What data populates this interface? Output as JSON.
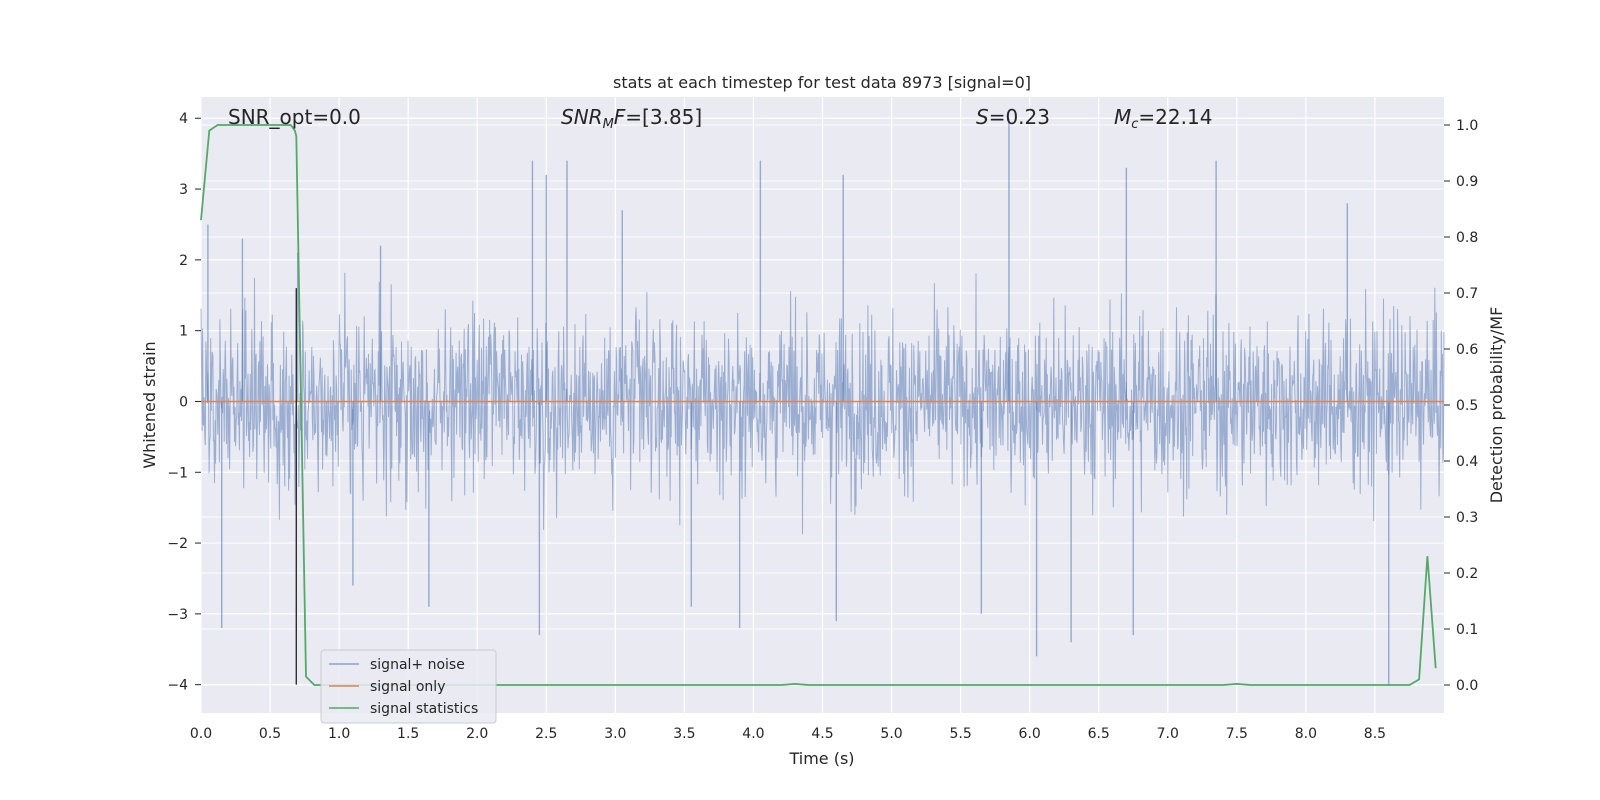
{
  "chart_data": {
    "type": "line",
    "title": "stats at each timestep for test data 8973 [signal=0]",
    "xlabel": "Time (s)",
    "ylabel_left": "Whitened strain",
    "ylabel_right": "Detection probability/MF",
    "xlim": [
      0.0,
      9.0
    ],
    "ylim_left": [
      -4.4,
      4.3
    ],
    "ylim_right": [
      -0.05,
      1.05
    ],
    "xticks": [
      "0.0",
      "0.5",
      "1.0",
      "1.5",
      "2.0",
      "2.5",
      "3.0",
      "3.5",
      "4.0",
      "4.5",
      "5.0",
      "5.5",
      "6.0",
      "6.5",
      "7.0",
      "7.5",
      "8.0",
      "8.5"
    ],
    "xtick_values": [
      0.0,
      0.5,
      1.0,
      1.5,
      2.0,
      2.5,
      3.0,
      3.5,
      4.0,
      4.5,
      5.0,
      5.5,
      6.0,
      6.5,
      7.0,
      7.5,
      8.0,
      8.5
    ],
    "yticks_left": [
      "−4",
      "−3",
      "−2",
      "−1",
      "0",
      "1",
      "2",
      "3",
      "4"
    ],
    "ytick_values_left": [
      -4,
      -3,
      -2,
      -1,
      0,
      1,
      2,
      3,
      4
    ],
    "yticks_right": [
      "0.0",
      "0.1",
      "0.2",
      "0.3",
      "0.4",
      "0.5",
      "0.6",
      "0.7",
      "0.8",
      "0.9",
      "1.0"
    ],
    "ytick_values_right": [
      0.0,
      0.1,
      0.2,
      0.3,
      0.4,
      0.5,
      0.6,
      0.7,
      0.8,
      0.9,
      1.0
    ],
    "annotations": {
      "snr_opt": "SNR_opt=0.0",
      "snr_mf_base": "SNR",
      "snr_mf_sub": "M",
      "snr_mf_rest": "F=[3.85]",
      "s_sym": "S",
      "s_val": "=0.23",
      "mc_sym": "M",
      "mc_sub": "c",
      "mc_val": "=22.14"
    },
    "series": [
      {
        "name": "signal+ noise",
        "color": "#4c72b0",
        "axis": "left",
        "envelope_note": "dense gaussian noise, mostly within ±1.6, spikes to ~±3.5",
        "spikes_up": [
          [
            0.05,
            2.5
          ],
          [
            0.3,
            2.3
          ],
          [
            0.7,
            2.1
          ],
          [
            1.3,
            2.2
          ],
          [
            2.4,
            3.4
          ],
          [
            2.5,
            3.2
          ],
          [
            2.65,
            3.4
          ],
          [
            3.05,
            2.7
          ],
          [
            4.05,
            3.4
          ],
          [
            4.65,
            3.2
          ],
          [
            5.85,
            4.0
          ],
          [
            6.7,
            3.3
          ],
          [
            7.35,
            3.4
          ],
          [
            8.3,
            2.8
          ]
        ],
        "spikes_down": [
          [
            0.15,
            -3.2
          ],
          [
            1.1,
            -2.6
          ],
          [
            1.65,
            -2.9
          ],
          [
            2.45,
            -3.3
          ],
          [
            3.55,
            -2.9
          ],
          [
            3.9,
            -3.2
          ],
          [
            4.6,
            -3.1
          ],
          [
            5.65,
            -3.0
          ],
          [
            6.05,
            -3.6
          ],
          [
            6.3,
            -3.4
          ],
          [
            6.75,
            -3.3
          ],
          [
            8.6,
            -4.0
          ]
        ]
      },
      {
        "name": "signal only",
        "color": "#dd8452",
        "axis": "left",
        "x": [
          0.0,
          9.0
        ],
        "y": [
          0.0,
          0.0
        ]
      },
      {
        "name": "signal statistics",
        "color": "#55a868",
        "axis": "right",
        "x": [
          0.0,
          0.06,
          0.12,
          0.2,
          0.65,
          0.68,
          0.69,
          0.76,
          0.82,
          0.9,
          4.2,
          4.3,
          4.4,
          5.0,
          7.4,
          7.5,
          7.6,
          8.5,
          8.75,
          8.82,
          8.88,
          8.94
        ],
        "y": [
          0.83,
          0.99,
          1.0,
          1.0,
          1.0,
          0.99,
          0.98,
          0.015,
          0.0,
          0.0,
          0.0,
          0.002,
          0.0,
          0.0,
          0.0,
          0.002,
          0.0,
          0.0,
          0.0,
          0.01,
          0.23,
          0.03
        ]
      }
    ],
    "vertical_marker": {
      "x": 0.69,
      "color": "#2d2d2d"
    },
    "legend": {
      "placement": "lower-left",
      "entries": [
        {
          "label": "signal+ noise",
          "color": "#4c72b0"
        },
        {
          "label": "signal only",
          "color": "#dd8452"
        },
        {
          "label": "signal statistics",
          "color": "#55a868"
        }
      ]
    },
    "grid": true,
    "background": "#eaeaf2"
  }
}
